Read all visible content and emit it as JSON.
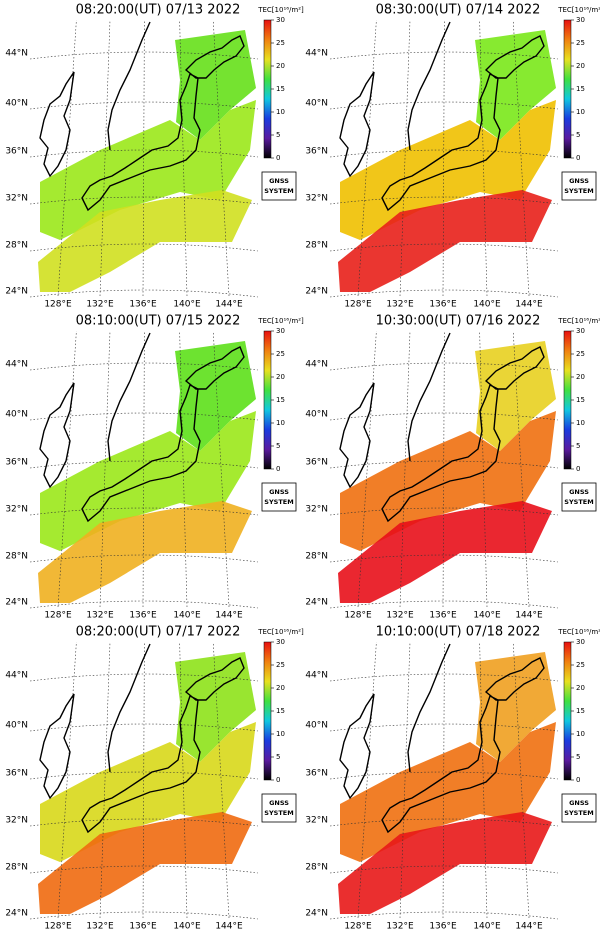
{
  "panels": [
    {
      "title": "08:20:00(UT) 07/13 2022",
      "colors": [
        "#66e01a",
        "#9be81a",
        "#d0e020"
      ]
    },
    {
      "title": "08:30:00(UT) 07/14 2022",
      "colors": [
        "#7ae81a",
        "#f0c000",
        "#e8201a"
      ]
    },
    {
      "title": "08:10:00(UT) 07/15 2022",
      "colors": [
        "#5de01a",
        "#9be81a",
        "#f0b020"
      ]
    },
    {
      "title": "10:30:00(UT) 07/16 2022",
      "colors": [
        "#e8d020",
        "#f07010",
        "#e8101a"
      ]
    },
    {
      "title": "08:20:00(UT) 07/17 2022",
      "colors": [
        "#8ee21a",
        "#d8d81a",
        "#f06a10"
      ]
    },
    {
      "title": "10:10:00(UT) 07/18 2022",
      "colors": [
        "#f0a020",
        "#f07010",
        "#e81818"
      ]
    }
  ],
  "latitude_labels": [
    "44°N",
    "40°N",
    "36°N",
    "32°N",
    "28°N",
    "24°N"
  ],
  "longitude_labels": [
    "128°E",
    "132°E",
    "136°E",
    "140°E",
    "144°E"
  ],
  "colorbar": {
    "label": "TEC[10¹⁶/m²]",
    "lim": [
      0,
      30
    ],
    "ticks": [
      0,
      5,
      10,
      15,
      20,
      25,
      30
    ],
    "colors": [
      "#000000",
      "#5a1aa0",
      "#1a3ce0",
      "#10c8e0",
      "#40e040",
      "#e8e020",
      "#f08010",
      "#e81010"
    ]
  },
  "badge": [
    "GNSS",
    "SYSTEM"
  ]
}
